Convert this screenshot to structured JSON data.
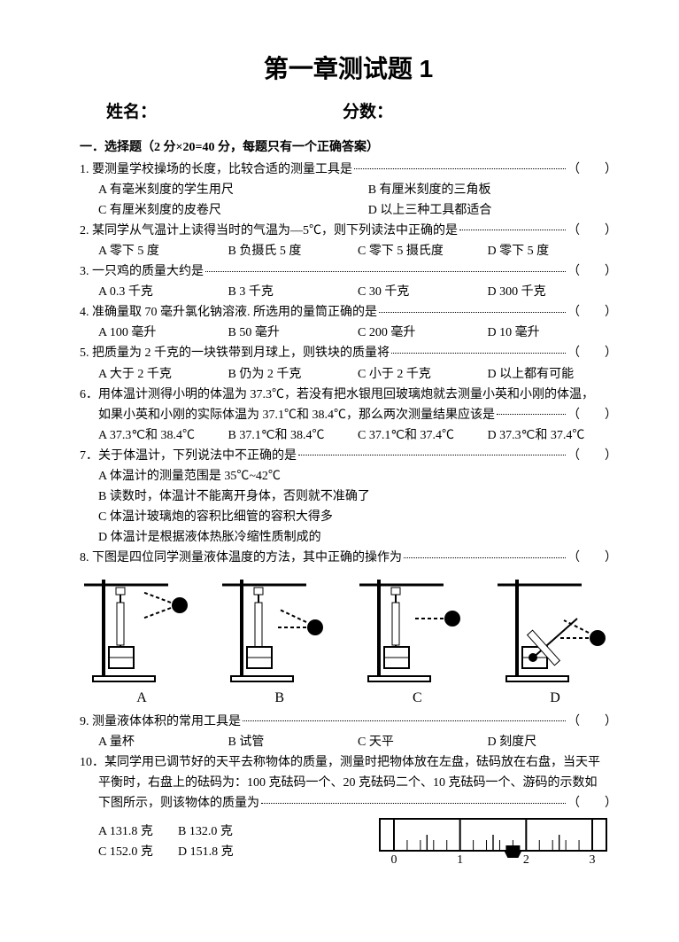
{
  "title": "第一章测试题 1",
  "header": {
    "name_label": "姓名：",
    "score_label": "分数："
  },
  "section1": {
    "head": "一．选择题（2 分×20=40 分，每题只有一个正确答案）",
    "paren": "（　　）"
  },
  "q1": {
    "stem": "1. 要测量学校操场的长度，比较合适的测量工具是",
    "a": "A 有毫米刻度的学生用尺",
    "b": "B 有厘米刻度的三角板",
    "c": "C 有厘米刻度的皮卷尺",
    "d": "D 以上三种工具都适合"
  },
  "q2": {
    "stem": "2. 某同学从气温计上读得当时的气温为—5℃，则下列读法中正确的是",
    "a": "A 零下 5 度",
    "b": "B 负摄氏 5 度",
    "c": "C 零下 5 摄氏度",
    "d": "D 零下 5 度"
  },
  "q3": {
    "stem": "3. 一只鸡的质量大约是",
    "a": "A 0.3 千克",
    "b": "B 3 千克",
    "c": "C 30 千克",
    "d": "D 300 千克"
  },
  "q4": {
    "stem": "4. 准确量取 70 毫升氯化钠溶液. 所选用的量筒正确的是",
    "a": "A 100 毫升",
    "b": "B 50 毫升",
    "c": "C 200 毫升",
    "d": "D 10 毫升"
  },
  "q5": {
    "stem": "5. 把质量为 2 千克的一块铁带到月球上，则铁块的质量将",
    "a": "A 大于 2 千克",
    "b": "B 仍为 2 千克",
    "c": "C 小于 2 千克",
    "d": "D 以上都有可能"
  },
  "q6": {
    "line1": "6．用体温计测得小明的体温为 37.3℃，若没有把水银甩回玻璃炮就去测量小英和小刚的体温，",
    "line2_text": "如果小英和小刚的实际体温为 37.1℃和 38.4℃，那么两次测量结果应该是",
    "a": "A 37.3℃和 38.4℃",
    "b": "B 37.1℃和 38.4℃",
    "c": "C 37.1℃和 37.4℃",
    "d": "D 37.3℃和 37.4℃"
  },
  "q7": {
    "stem": "7．关于体温计，下列说法中不正确的是",
    "a": "A 体温计的测量范围是 35℃~42℃",
    "b": "B 读数时，体温计不能离开身体，否则就不准确了",
    "c": "C 体温计玻璃炮的容积比细管的容积大得多",
    "d": "D 体温计是根据液体热胀冷缩性质制成的"
  },
  "q8": {
    "stem": "8. 下图是四位同学测量液体温度的方法，其中正确的操作为",
    "labels": {
      "a": "A",
      "b": "B",
      "c": "C",
      "d": "D"
    }
  },
  "q9": {
    "stem": "9. 测量液体体积的常用工具是",
    "a": "A 量杯",
    "b": "B 试管",
    "c": "C 天平",
    "d": "D 刻度尺"
  },
  "q10": {
    "line1": "10．某同学用已调节好的天平去称物体的质量，测量时把物体放在左盘，砝码放在右盘，当天平",
    "line2": "平衡时，右盘上的砝码为：100 克砝码一个、20 克砝码二个、10 克砝码一个、游码的示数如",
    "line3": "下图所示，则该物体的质量为",
    "a": "A 131.8 克",
    "b": "B 132.0 克",
    "c": "C 152.0 克",
    "d": "D 151.8 克"
  },
  "ruler": {
    "ticks": [
      "0",
      "1",
      "2",
      "3"
    ],
    "rider_pos": 1.8,
    "stroke": "#000000",
    "bg": "#ffffff"
  },
  "colors": {
    "text": "#000000",
    "bg": "#ffffff"
  }
}
